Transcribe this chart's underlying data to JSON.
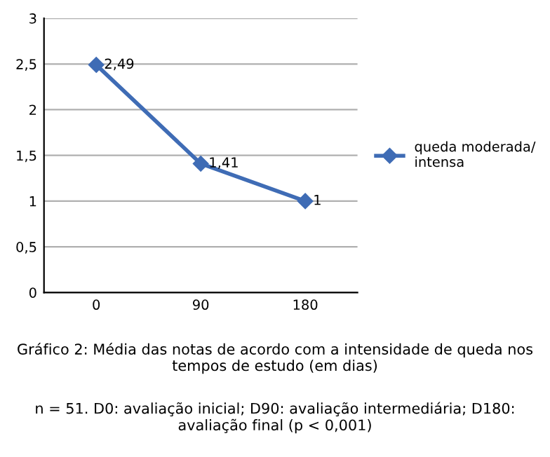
{
  "chart_data": {
    "type": "line",
    "title": "Gráfico 2: Média das notas de acordo com a intensidade de queda nos tempos de estudo (em dias)",
    "annotations": [
      "n = 51. D0: avaliação inicial; D90: avaliação intermediária; D180: avaliação final (p < 0,001)"
    ],
    "categories": [
      "0",
      "90",
      "180"
    ],
    "series": [
      {
        "name": "queda moderada/\nintensa",
        "color": "#3f6cb5",
        "values": [
          2.49,
          1.41,
          1
        ],
        "value_labels": [
          "2,49",
          "1,41",
          "1"
        ]
      }
    ],
    "ylim": [
      0,
      3
    ],
    "yticks": [
      0,
      {
        "value": 0.5,
        "label": "0,5"
      },
      1,
      {
        "value": 1.5,
        "label": "1,5"
      },
      2,
      {
        "value": 2.5,
        "label": "2,5"
      },
      3
    ],
    "grid": "y",
    "legend": "right",
    "marker": "diamond",
    "line_style": "solid"
  }
}
